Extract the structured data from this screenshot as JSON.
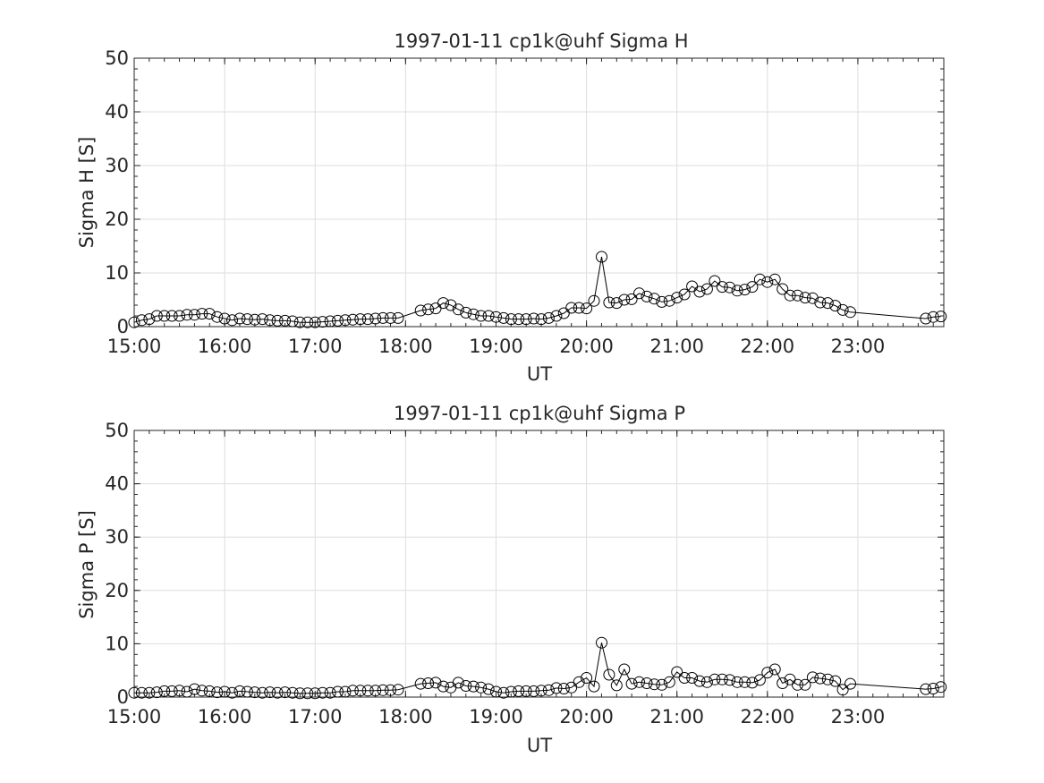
{
  "chart_data": [
    {
      "type": "line",
      "title": "1997-01-11  cp1k@uhf Sigma H",
      "xlabel": "UT",
      "ylabel": "Sigma H [S]",
      "x_tick_labels": [
        "15:00",
        "16:00",
        "17:00",
        "18:00",
        "19:00",
        "20:00",
        "21:00",
        "22:00",
        "23:00"
      ],
      "x_tick_hours": [
        15,
        16,
        17,
        18,
        19,
        20,
        21,
        22,
        23
      ],
      "xlim_hours": [
        15.0,
        23.95
      ],
      "ylim": [
        0,
        50
      ],
      "y_ticks": [
        0,
        10,
        20,
        30,
        40,
        50
      ],
      "grid": true,
      "marker": "circle",
      "x_hours": [
        15.0,
        15.083,
        15.167,
        15.25,
        15.333,
        15.417,
        15.5,
        15.583,
        15.667,
        15.75,
        15.833,
        15.917,
        16.0,
        16.083,
        16.167,
        16.25,
        16.333,
        16.417,
        16.5,
        16.583,
        16.667,
        16.75,
        16.833,
        16.917,
        17.0,
        17.083,
        17.167,
        17.25,
        17.333,
        17.417,
        17.5,
        17.583,
        17.667,
        17.75,
        17.833,
        17.917,
        18.167,
        18.25,
        18.333,
        18.417,
        18.5,
        18.583,
        18.667,
        18.75,
        18.833,
        18.917,
        19.0,
        19.083,
        19.167,
        19.25,
        19.333,
        19.417,
        19.5,
        19.583,
        19.667,
        19.75,
        19.833,
        19.917,
        20.0,
        20.083,
        20.167,
        20.25,
        20.333,
        20.417,
        20.5,
        20.583,
        20.667,
        20.75,
        20.833,
        20.917,
        21.0,
        21.083,
        21.167,
        21.25,
        21.333,
        21.417,
        21.5,
        21.583,
        21.667,
        21.75,
        21.833,
        21.917,
        22.0,
        22.083,
        22.167,
        22.25,
        22.333,
        22.417,
        22.5,
        22.583,
        22.667,
        22.75,
        22.833,
        22.917,
        23.75,
        23.833,
        23.917
      ],
      "values": [
        0.8,
        1.2,
        1.4,
        2.0,
        2.0,
        2.0,
        2.0,
        2.2,
        2.2,
        2.4,
        2.4,
        1.8,
        1.5,
        1.2,
        1.5,
        1.4,
        1.3,
        1.4,
        1.2,
        1.1,
        1.1,
        1.0,
        0.8,
        0.8,
        0.8,
        0.9,
        1.0,
        1.1,
        1.2,
        1.3,
        1.4,
        1.4,
        1.5,
        1.6,
        1.6,
        1.6,
        3.0,
        3.2,
        3.4,
        4.4,
        4.0,
        3.2,
        2.6,
        2.3,
        2.0,
        2.0,
        1.8,
        1.6,
        1.4,
        1.4,
        1.4,
        1.5,
        1.4,
        1.6,
        2.0,
        2.5,
        3.5,
        3.5,
        3.4,
        4.8,
        13.0,
        4.5,
        4.4,
        5.0,
        5.1,
        6.2,
        5.6,
        5.2,
        4.6,
        4.8,
        5.4,
        6.0,
        7.5,
        6.5,
        7.0,
        8.5,
        7.4,
        7.3,
        6.7,
        6.9,
        7.4,
        8.8,
        8.3,
        8.8,
        7.0,
        5.8,
        5.8,
        5.4,
        5.3,
        4.5,
        4.4,
        3.9,
        3.1,
        2.7,
        1.5,
        1.8,
        1.9
      ]
    },
    {
      "type": "line",
      "title": "1997-01-11  cp1k@uhf Sigma P",
      "xlabel": "UT",
      "ylabel": "Sigma P [S]",
      "x_tick_labels": [
        "15:00",
        "16:00",
        "17:00",
        "18:00",
        "19:00",
        "20:00",
        "21:00",
        "22:00",
        "23:00"
      ],
      "x_tick_hours": [
        15,
        16,
        17,
        18,
        19,
        20,
        21,
        22,
        23
      ],
      "xlim_hours": [
        15.0,
        23.95
      ],
      "ylim": [
        0,
        50
      ],
      "y_ticks": [
        0,
        10,
        20,
        30,
        40,
        50
      ],
      "grid": true,
      "marker": "circle",
      "x_hours": [
        15.0,
        15.083,
        15.167,
        15.25,
        15.333,
        15.417,
        15.5,
        15.583,
        15.667,
        15.75,
        15.833,
        15.917,
        16.0,
        16.083,
        16.167,
        16.25,
        16.333,
        16.417,
        16.5,
        16.583,
        16.667,
        16.75,
        16.833,
        16.917,
        17.0,
        17.083,
        17.167,
        17.25,
        17.333,
        17.417,
        17.5,
        17.583,
        17.667,
        17.75,
        17.833,
        17.917,
        18.167,
        18.25,
        18.333,
        18.417,
        18.5,
        18.583,
        18.667,
        18.75,
        18.833,
        18.917,
        19.0,
        19.083,
        19.167,
        19.25,
        19.333,
        19.417,
        19.5,
        19.583,
        19.667,
        19.75,
        19.833,
        19.917,
        20.0,
        20.083,
        20.167,
        20.25,
        20.333,
        20.417,
        20.5,
        20.583,
        20.667,
        20.75,
        20.833,
        20.917,
        21.0,
        21.083,
        21.167,
        21.25,
        21.333,
        21.417,
        21.5,
        21.583,
        21.667,
        21.75,
        21.833,
        21.917,
        22.0,
        22.083,
        22.167,
        22.25,
        22.333,
        22.417,
        22.5,
        22.583,
        22.667,
        22.75,
        22.833,
        22.917,
        23.75,
        23.833,
        23.917
      ],
      "values": [
        0.8,
        0.8,
        0.8,
        0.9,
        1.1,
        1.1,
        1.2,
        1.0,
        1.5,
        1.2,
        1.1,
        0.9,
        1.0,
        0.8,
        1.1,
        1.0,
        0.9,
        0.8,
        0.9,
        0.8,
        0.9,
        0.8,
        0.7,
        0.7,
        0.7,
        0.8,
        0.8,
        1.0,
        1.0,
        1.2,
        1.2,
        1.2,
        1.2,
        1.3,
        1.3,
        1.4,
        2.5,
        2.6,
        2.7,
        2.0,
        1.8,
        2.7,
        2.1,
        2.0,
        1.8,
        1.5,
        1.0,
        0.8,
        1.0,
        1.1,
        1.1,
        1.1,
        1.2,
        1.3,
        1.7,
        1.6,
        1.8,
        2.8,
        3.6,
        2.0,
        10.2,
        4.2,
        2.2,
        5.2,
        2.5,
        2.8,
        2.6,
        2.4,
        2.3,
        2.8,
        4.7,
        3.6,
        3.6,
        3.0,
        2.8,
        3.3,
        3.3,
        3.2,
        2.8,
        2.8,
        2.7,
        3.2,
        4.6,
        5.2,
        2.6,
        3.3,
        2.3,
        2.3,
        3.7,
        3.5,
        3.3,
        3.0,
        1.4,
        2.5,
        1.5,
        1.6,
        1.9
      ]
    }
  ]
}
